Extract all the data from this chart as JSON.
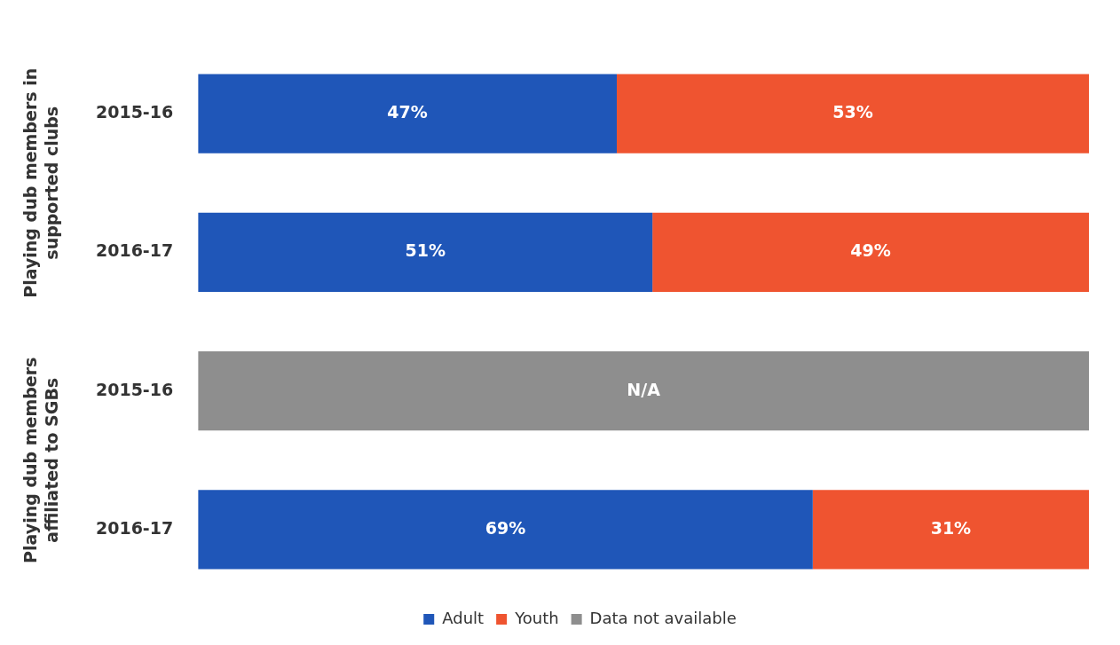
{
  "chart_data": {
    "type": "bar",
    "orientation": "horizontal",
    "stacked": true,
    "categories": [
      "2015-16",
      "2016-17",
      "2015-16",
      "2016-17"
    ],
    "series": [
      {
        "name": "Adult",
        "color": "#1f56b8",
        "values": [
          47,
          51,
          null,
          69
        ],
        "value_labels": [
          "47%",
          "51%",
          null,
          "69%"
        ]
      },
      {
        "name": "Youth",
        "color": "#ef5430",
        "values": [
          53,
          49,
          null,
          31
        ],
        "value_labels": [
          "53%",
          "49%",
          null,
          "31%"
        ]
      },
      {
        "name": "Data not available",
        "color": "#8e8e8e",
        "values": [
          null,
          null,
          100,
          null
        ],
        "value_labels": [
          null,
          null,
          "N/A",
          null
        ]
      }
    ],
    "xlim": [
      0,
      100
    ],
    "tick_labels": "y",
    "grid": false,
    "legend": "bottom",
    "annotations": [
      "Playing dub members in supported clubs",
      "Playing dub members affiliated to SGBs"
    ]
  }
}
